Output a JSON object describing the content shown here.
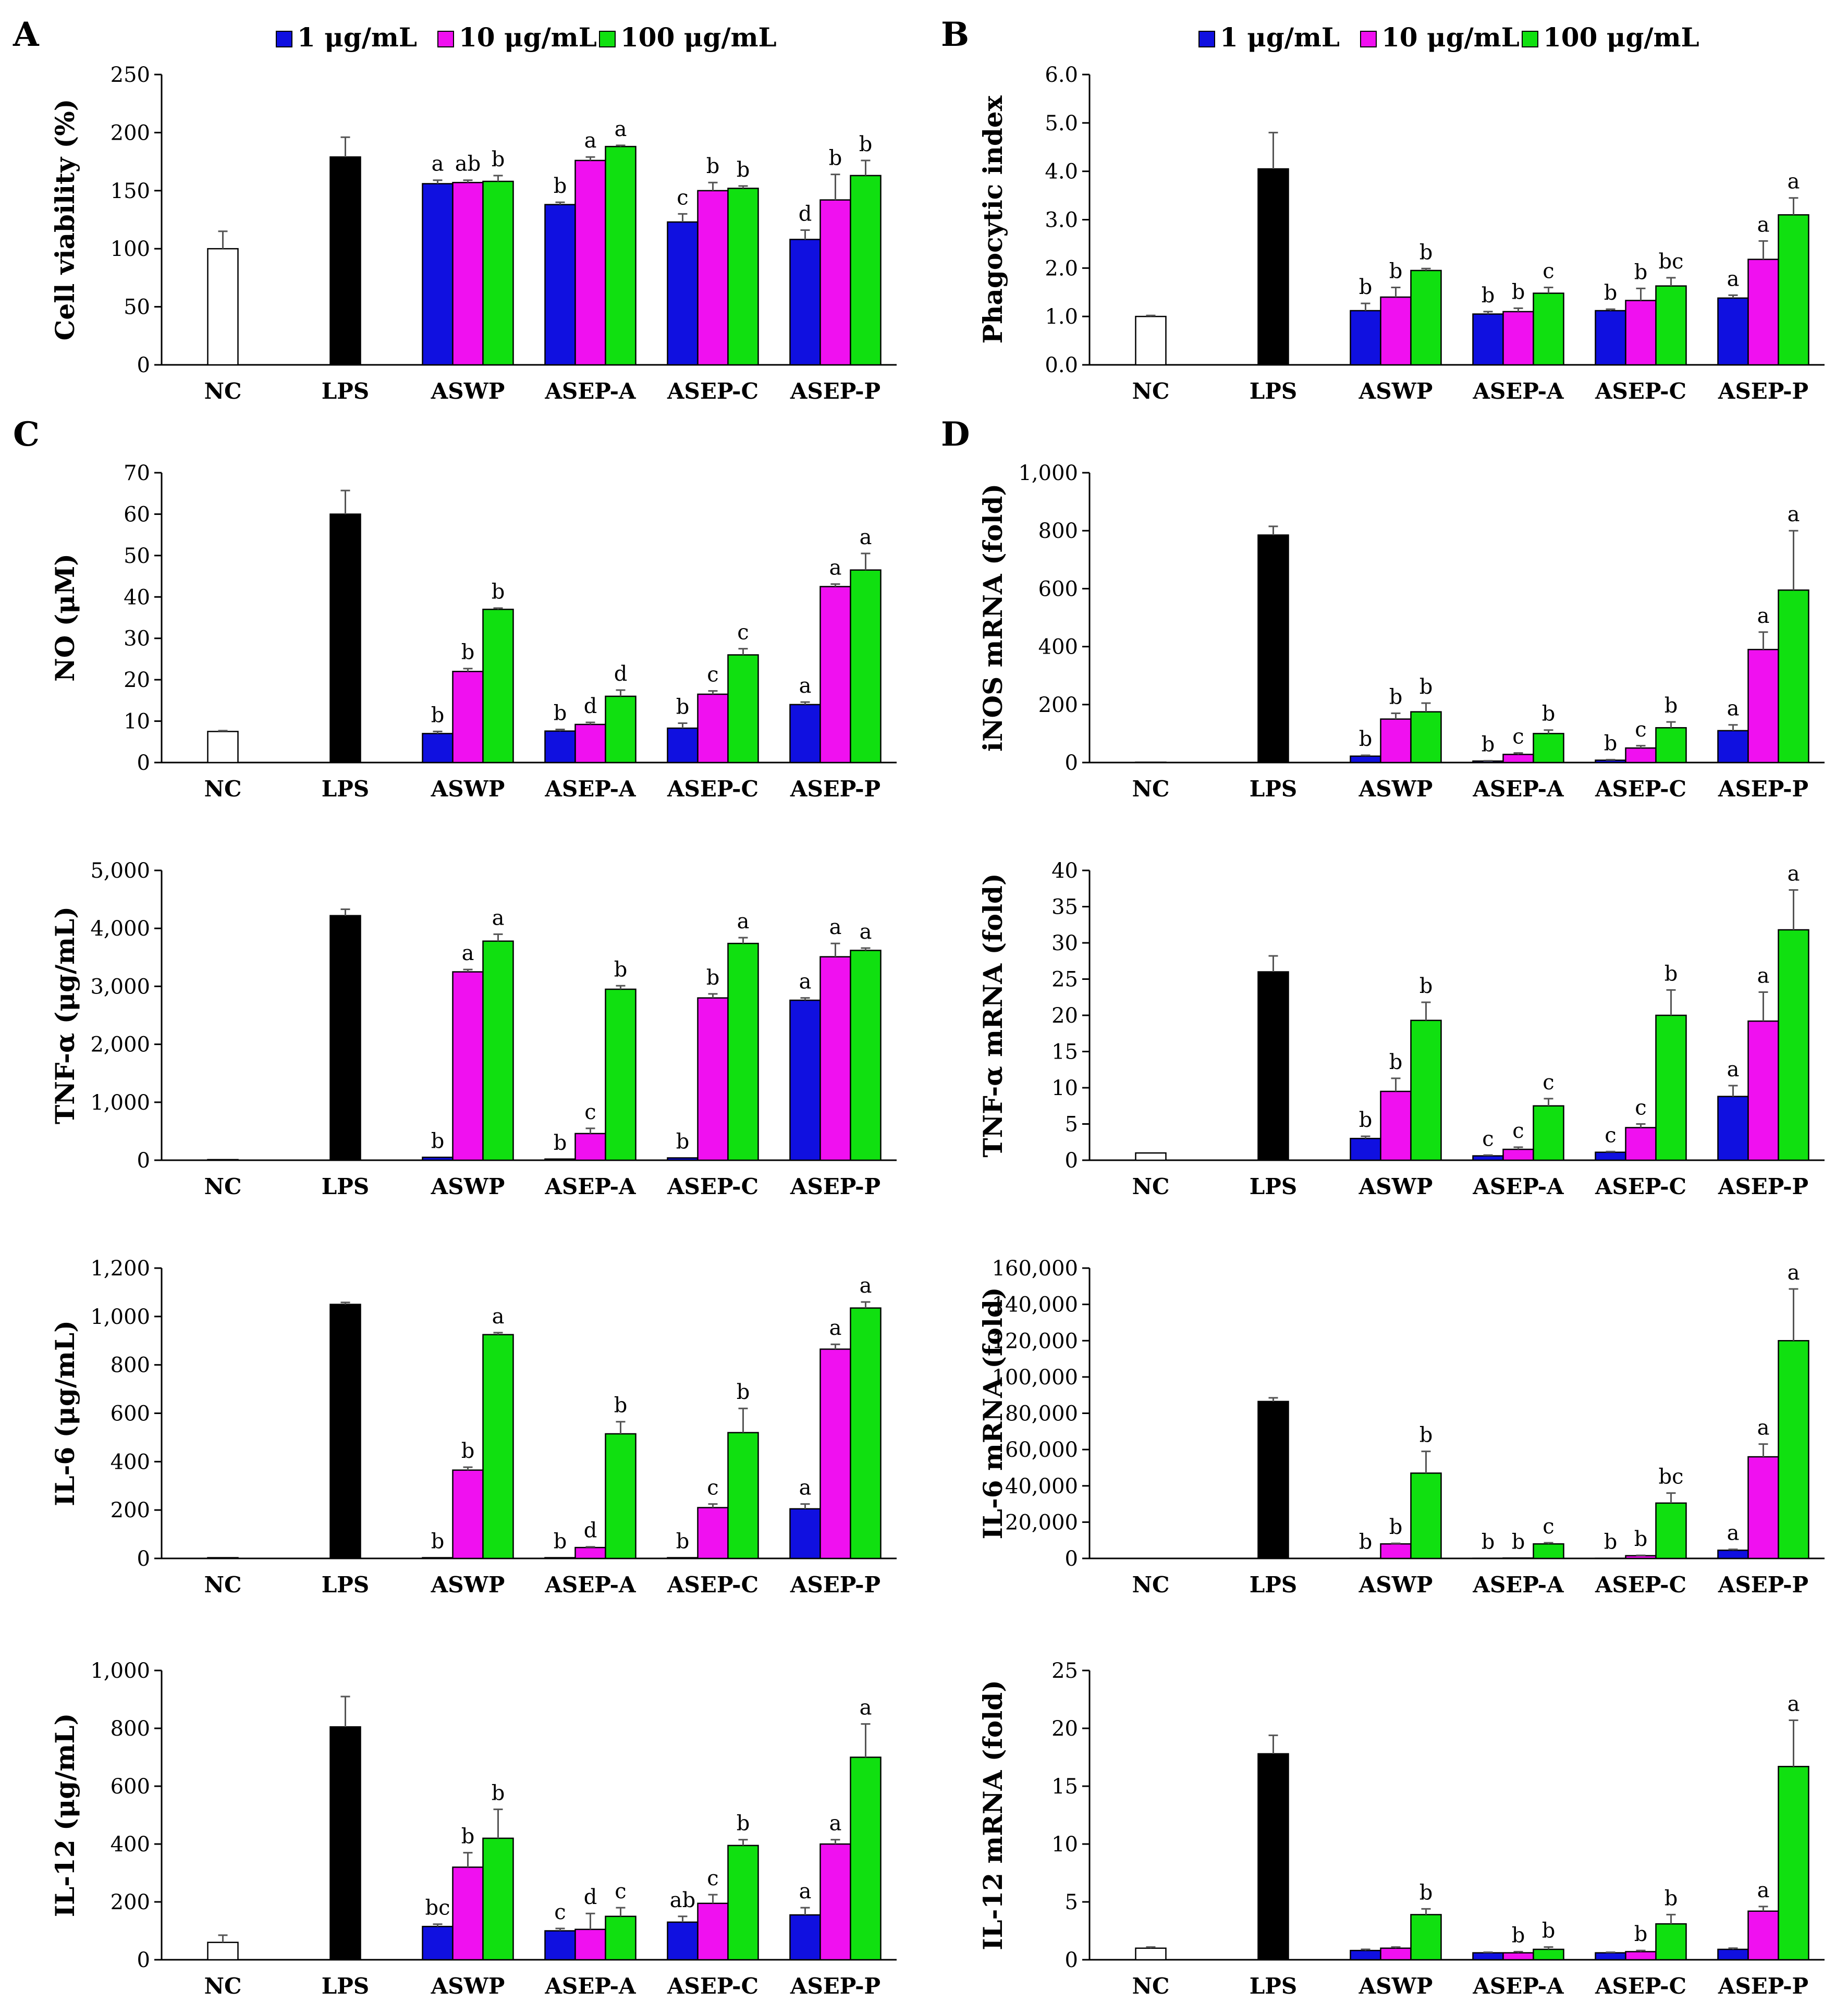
{
  "legend": [
    {
      "label": "1 μg/mL",
      "color": "#1010e0"
    },
    {
      "label": "10 μg/mL",
      "color": "#f010f0"
    },
    {
      "label": "100 μg/mL",
      "color": "#10e010"
    }
  ],
  "control_colors": {
    "NC": "#ffffff",
    "LPS": "#000000"
  },
  "chart_data": [
    {
      "panel": "A",
      "type": "bar",
      "ylabel": "Cell viability (%)",
      "yticks": [
        "0",
        "50",
        "100",
        "150",
        "200",
        "250"
      ],
      "ylim": [
        0,
        250
      ],
      "categories": [
        "NC",
        "LPS",
        "ASWP",
        "ASEP-A",
        "ASEP-C",
        "ASEP-P"
      ],
      "controls": [
        {
          "name": "NC",
          "value": 100,
          "err": 15
        },
        {
          "name": "LPS",
          "value": 179,
          "err": 17
        }
      ],
      "groups": [
        {
          "category": "ASWP",
          "values": [
            156,
            157,
            158
          ],
          "err": [
            3,
            2,
            5
          ],
          "letters": [
            "a",
            "ab",
            "b"
          ]
        },
        {
          "category": "ASEP-A",
          "values": [
            138,
            176,
            188
          ],
          "err": [
            2,
            3,
            1
          ],
          "letters": [
            "b",
            "a",
            "a"
          ]
        },
        {
          "category": "ASEP-C",
          "values": [
            123,
            150,
            152
          ],
          "err": [
            7,
            7,
            2
          ],
          "letters": [
            "c",
            "b",
            "b"
          ]
        },
        {
          "category": "ASEP-P",
          "values": [
            108,
            142,
            163
          ],
          "err": [
            8,
            22,
            13
          ],
          "letters": [
            "d",
            "b",
            "b"
          ]
        }
      ]
    },
    {
      "panel": "B",
      "type": "bar",
      "ylabel": "Phagocytic index",
      "yticks": [
        "0.0",
        "1.0",
        "2.0",
        "3.0",
        "4.0",
        "5.0",
        "6.0"
      ],
      "ylim": [
        0,
        6
      ],
      "categories": [
        "NC",
        "LPS",
        "ASWP",
        "ASEP-A",
        "ASEP-C",
        "ASEP-P"
      ],
      "controls": [
        {
          "name": "NC",
          "value": 1.0,
          "err": 0.02
        },
        {
          "name": "LPS",
          "value": 4.05,
          "err": 0.75
        }
      ],
      "groups": [
        {
          "category": "ASWP",
          "values": [
            1.12,
            1.4,
            1.95
          ],
          "err": [
            0.15,
            0.2,
            0.04
          ],
          "letters": [
            "b",
            "b",
            "b"
          ]
        },
        {
          "category": "ASEP-A",
          "values": [
            1.05,
            1.1,
            1.48
          ],
          "err": [
            0.05,
            0.07,
            0.12
          ],
          "letters": [
            "b",
            "b",
            "c"
          ]
        },
        {
          "category": "ASEP-C",
          "values": [
            1.12,
            1.33,
            1.63
          ],
          "err": [
            0.03,
            0.25,
            0.17
          ],
          "letters": [
            "b",
            "b",
            "bc"
          ]
        },
        {
          "category": "ASEP-P",
          "values": [
            1.38,
            2.18,
            3.1
          ],
          "err": [
            0.06,
            0.38,
            0.35
          ],
          "letters": [
            "a",
            "a",
            "a"
          ]
        }
      ]
    },
    {
      "panel": "C",
      "type": "bar",
      "ylabel": "NO (μM)",
      "yticks": [
        "0",
        "10",
        "20",
        "30",
        "40",
        "50",
        "60",
        "70"
      ],
      "ylim": [
        0,
        70
      ],
      "categories": [
        "NC",
        "LPS",
        "ASWP",
        "ASEP-A",
        "ASEP-C",
        "ASEP-P"
      ],
      "controls": [
        {
          "name": "NC",
          "value": 7.5,
          "err": 0.2
        },
        {
          "name": "LPS",
          "value": 60,
          "err": 5.7
        }
      ],
      "groups": [
        {
          "category": "ASWP",
          "values": [
            7,
            22,
            37
          ],
          "err": [
            0.5,
            0.7,
            0.3
          ],
          "letters": [
            "b",
            "b",
            "b"
          ]
        },
        {
          "category": "ASEP-A",
          "values": [
            7.6,
            9.2,
            16
          ],
          "err": [
            0.4,
            0.5,
            1.5
          ],
          "letters": [
            "b",
            "d",
            "d"
          ]
        },
        {
          "category": "ASEP-C",
          "values": [
            8.3,
            16.5,
            26
          ],
          "err": [
            1.2,
            0.8,
            1.5
          ],
          "letters": [
            "b",
            "c",
            "c"
          ]
        },
        {
          "category": "ASEP-P",
          "values": [
            14,
            42.5,
            46.5
          ],
          "err": [
            0.6,
            0.6,
            4
          ],
          "letters": [
            "a",
            "a",
            "a"
          ]
        }
      ]
    },
    {
      "panel": "D",
      "type": "bar",
      "ylabel": "iNOS mRNA (fold)",
      "yticks": [
        "0",
        "200",
        "400",
        "600",
        "800",
        "1,000"
      ],
      "ylim": [
        0,
        1000
      ],
      "categories": [
        "NC",
        "LPS",
        "ASWP",
        "ASEP-A",
        "ASEP-C",
        "ASEP-P"
      ],
      "controls": [
        {
          "name": "NC",
          "value": 1,
          "err": 0
        },
        {
          "name": "LPS",
          "value": 785,
          "err": 30
        }
      ],
      "groups": [
        {
          "category": "ASWP",
          "values": [
            22,
            150,
            175
          ],
          "err": [
            3,
            20,
            30
          ],
          "letters": [
            "b",
            "b",
            "b"
          ]
        },
        {
          "category": "ASEP-A",
          "values": [
            5,
            28,
            100
          ],
          "err": [
            1,
            5,
            12
          ],
          "letters": [
            "b",
            "c",
            "b"
          ]
        },
        {
          "category": "ASEP-C",
          "values": [
            8,
            50,
            120
          ],
          "err": [
            2,
            8,
            20
          ],
          "letters": [
            "b",
            "c",
            "b"
          ]
        },
        {
          "category": "ASEP-P",
          "values": [
            110,
            390,
            595
          ],
          "err": [
            20,
            60,
            205
          ],
          "letters": [
            "a",
            "a",
            "a"
          ]
        }
      ]
    },
    {
      "panel": "",
      "type": "bar",
      "ylabel": "TNF-α (μg/mL)",
      "yticks": [
        "0",
        "1,000",
        "2,000",
        "3,000",
        "4,000",
        "5,000"
      ],
      "ylim": [
        0,
        5000
      ],
      "categories": [
        "NC",
        "LPS",
        "ASWP",
        "ASEP-A",
        "ASEP-C",
        "ASEP-P"
      ],
      "controls": [
        {
          "name": "NC",
          "value": 10,
          "err": 0
        },
        {
          "name": "LPS",
          "value": 4220,
          "err": 110
        }
      ],
      "groups": [
        {
          "category": "ASWP",
          "values": [
            50,
            3250,
            3780
          ],
          "err": [
            0,
            40,
            120
          ],
          "letters": [
            "b",
            "a",
            "a"
          ]
        },
        {
          "category": "ASEP-A",
          "values": [
            20,
            460,
            2950
          ],
          "err": [
            0,
            90,
            60
          ],
          "letters": [
            "b",
            "c",
            "b"
          ]
        },
        {
          "category": "ASEP-C",
          "values": [
            40,
            2800,
            3740
          ],
          "err": [
            0,
            70,
            100
          ],
          "letters": [
            "b",
            "b",
            "a"
          ]
        },
        {
          "category": "ASEP-P",
          "values": [
            2760,
            3510,
            3620
          ],
          "err": [
            40,
            230,
            40
          ],
          "letters": [
            "a",
            "a",
            "a"
          ]
        }
      ]
    },
    {
      "panel": "",
      "type": "bar",
      "ylabel": "TNF-α mRNA (fold)",
      "yticks": [
        "0",
        "5",
        "10",
        "15",
        "20",
        "25",
        "30",
        "35",
        "40"
      ],
      "ylim": [
        0,
        40
      ],
      "categories": [
        "NC",
        "LPS",
        "ASWP",
        "ASEP-A",
        "ASEP-C",
        "ASEP-P"
      ],
      "controls": [
        {
          "name": "NC",
          "value": 1,
          "err": 0
        },
        {
          "name": "LPS",
          "value": 26,
          "err": 2.2
        }
      ],
      "groups": [
        {
          "category": "ASWP",
          "values": [
            3,
            9.5,
            19.3
          ],
          "err": [
            0.3,
            1.8,
            2.5
          ],
          "letters": [
            "b",
            "b",
            "b"
          ]
        },
        {
          "category": "ASEP-A",
          "values": [
            0.6,
            1.5,
            7.5
          ],
          "err": [
            0.1,
            0.3,
            1
          ],
          "letters": [
            "c",
            "c",
            "c"
          ]
        },
        {
          "category": "ASEP-C",
          "values": [
            1.1,
            4.5,
            20
          ],
          "err": [
            0.1,
            0.5,
            3.5
          ],
          "letters": [
            "c",
            "c",
            "b"
          ]
        },
        {
          "category": "ASEP-P",
          "values": [
            8.8,
            19.2,
            31.8
          ],
          "err": [
            1.5,
            4,
            5.5
          ],
          "letters": [
            "a",
            "a",
            "a"
          ]
        }
      ]
    },
    {
      "panel": "",
      "type": "bar",
      "ylabel": "IL-6 (μg/mL)",
      "yticks": [
        "0",
        "200",
        "400",
        "600",
        "800",
        "1,000",
        "1,200"
      ],
      "ylim": [
        0,
        1200
      ],
      "categories": [
        "NC",
        "LPS",
        "ASWP",
        "ASEP-A",
        "ASEP-C",
        "ASEP-P"
      ],
      "controls": [
        {
          "name": "NC",
          "value": 3,
          "err": 0
        },
        {
          "name": "LPS",
          "value": 1050,
          "err": 8
        }
      ],
      "groups": [
        {
          "category": "ASWP",
          "values": [
            3,
            365,
            925
          ],
          "err": [
            0,
            12,
            8
          ],
          "letters": [
            "b",
            "b",
            "a"
          ]
        },
        {
          "category": "ASEP-A",
          "values": [
            3,
            45,
            515
          ],
          "err": [
            0,
            3,
            50
          ],
          "letters": [
            "b",
            "d",
            "b"
          ]
        },
        {
          "category": "ASEP-C",
          "values": [
            3,
            210,
            520
          ],
          "err": [
            0,
            15,
            100
          ],
          "letters": [
            "b",
            "c",
            "b"
          ]
        },
        {
          "category": "ASEP-P",
          "values": [
            205,
            865,
            1035
          ],
          "err": [
            20,
            20,
            25
          ],
          "letters": [
            "a",
            "a",
            "a"
          ]
        }
      ]
    },
    {
      "panel": "",
      "type": "bar",
      "ylabel": "IL-6 mRNA (fold)",
      "yticks": [
        "0",
        "20,000",
        "40,000",
        "60,000",
        "80,000",
        "100,000",
        "120,000",
        "140,000",
        "160,000"
      ],
      "ylim": [
        0,
        160000
      ],
      "categories": [
        "NC",
        "LPS",
        "ASWP",
        "ASEP-A",
        "ASEP-C",
        "ASEP-P"
      ],
      "controls": [
        {
          "name": "NC",
          "value": 1,
          "err": 0
        },
        {
          "name": "LPS",
          "value": 86500,
          "err": 2000
        }
      ],
      "groups": [
        {
          "category": "ASWP",
          "values": [
            100,
            8000,
            47000
          ],
          "err": [
            0,
            300,
            12000
          ],
          "letters": [
            "b",
            "b",
            "b"
          ]
        },
        {
          "category": "ASEP-A",
          "values": [
            100,
            200,
            8000
          ],
          "err": [
            0,
            0,
            600
          ],
          "letters": [
            "b",
            "b",
            "c"
          ]
        },
        {
          "category": "ASEP-C",
          "values": [
            100,
            1500,
            30500
          ],
          "err": [
            0,
            200,
            5500
          ],
          "letters": [
            "b",
            "b",
            "bc"
          ]
        },
        {
          "category": "ASEP-P",
          "values": [
            4500,
            56000,
            120000
          ],
          "err": [
            500,
            7000,
            28500
          ],
          "letters": [
            "a",
            "a",
            "a"
          ]
        }
      ]
    },
    {
      "panel": "",
      "type": "bar",
      "ylabel": "IL-12 (μg/mL)",
      "yticks": [
        "0",
        "200",
        "400",
        "600",
        "800",
        "1,000"
      ],
      "ylim": [
        0,
        1000
      ],
      "categories": [
        "NC",
        "LPS",
        "ASWP",
        "ASEP-A",
        "ASEP-C",
        "ASEP-P"
      ],
      "controls": [
        {
          "name": "NC",
          "value": 60,
          "err": 25
        },
        {
          "name": "LPS",
          "value": 805,
          "err": 105
        }
      ],
      "groups": [
        {
          "category": "ASWP",
          "values": [
            115,
            320,
            420
          ],
          "err": [
            8,
            50,
            100
          ],
          "letters": [
            "bc",
            "b",
            "b"
          ]
        },
        {
          "category": "ASEP-A",
          "values": [
            100,
            105,
            150
          ],
          "err": [
            8,
            55,
            30
          ],
          "letters": [
            "c",
            "d",
            "c"
          ]
        },
        {
          "category": "ASEP-C",
          "values": [
            130,
            195,
            395
          ],
          "err": [
            20,
            30,
            20
          ],
          "letters": [
            "ab",
            "c",
            "b"
          ]
        },
        {
          "category": "ASEP-P",
          "values": [
            155,
            400,
            700
          ],
          "err": [
            25,
            15,
            115
          ],
          "letters": [
            "a",
            "a",
            "a"
          ]
        }
      ]
    },
    {
      "panel": "",
      "type": "bar",
      "ylabel": "IL-12 mRNA (fold)",
      "yticks": [
        "0",
        "5",
        "10",
        "15",
        "20",
        "25"
      ],
      "ylim": [
        0,
        25
      ],
      "categories": [
        "NC",
        "LPS",
        "ASWP",
        "ASEP-A",
        "ASEP-C",
        "ASEP-P"
      ],
      "controls": [
        {
          "name": "NC",
          "value": 1,
          "err": 0.1
        },
        {
          "name": "LPS",
          "value": 17.8,
          "err": 1.6
        }
      ],
      "groups": [
        {
          "category": "ASWP",
          "values": [
            0.8,
            1.0,
            3.9
          ],
          "err": [
            0.1,
            0.1,
            0.5
          ],
          "letters": [
            "",
            "",
            "b"
          ]
        },
        {
          "category": "ASEP-A",
          "values": [
            0.6,
            0.6,
            0.9
          ],
          "err": [
            0.05,
            0.1,
            0.2
          ],
          "letters": [
            "",
            "b",
            "b"
          ]
        },
        {
          "category": "ASEP-C",
          "values": [
            0.6,
            0.7,
            3.1
          ],
          "err": [
            0.05,
            0.1,
            0.8
          ],
          "letters": [
            "",
            "b",
            "b"
          ]
        },
        {
          "category": "ASEP-P",
          "values": [
            0.9,
            4.2,
            16.7
          ],
          "err": [
            0.1,
            0.4,
            4
          ],
          "letters": [
            "",
            "a",
            "a"
          ]
        }
      ]
    }
  ]
}
